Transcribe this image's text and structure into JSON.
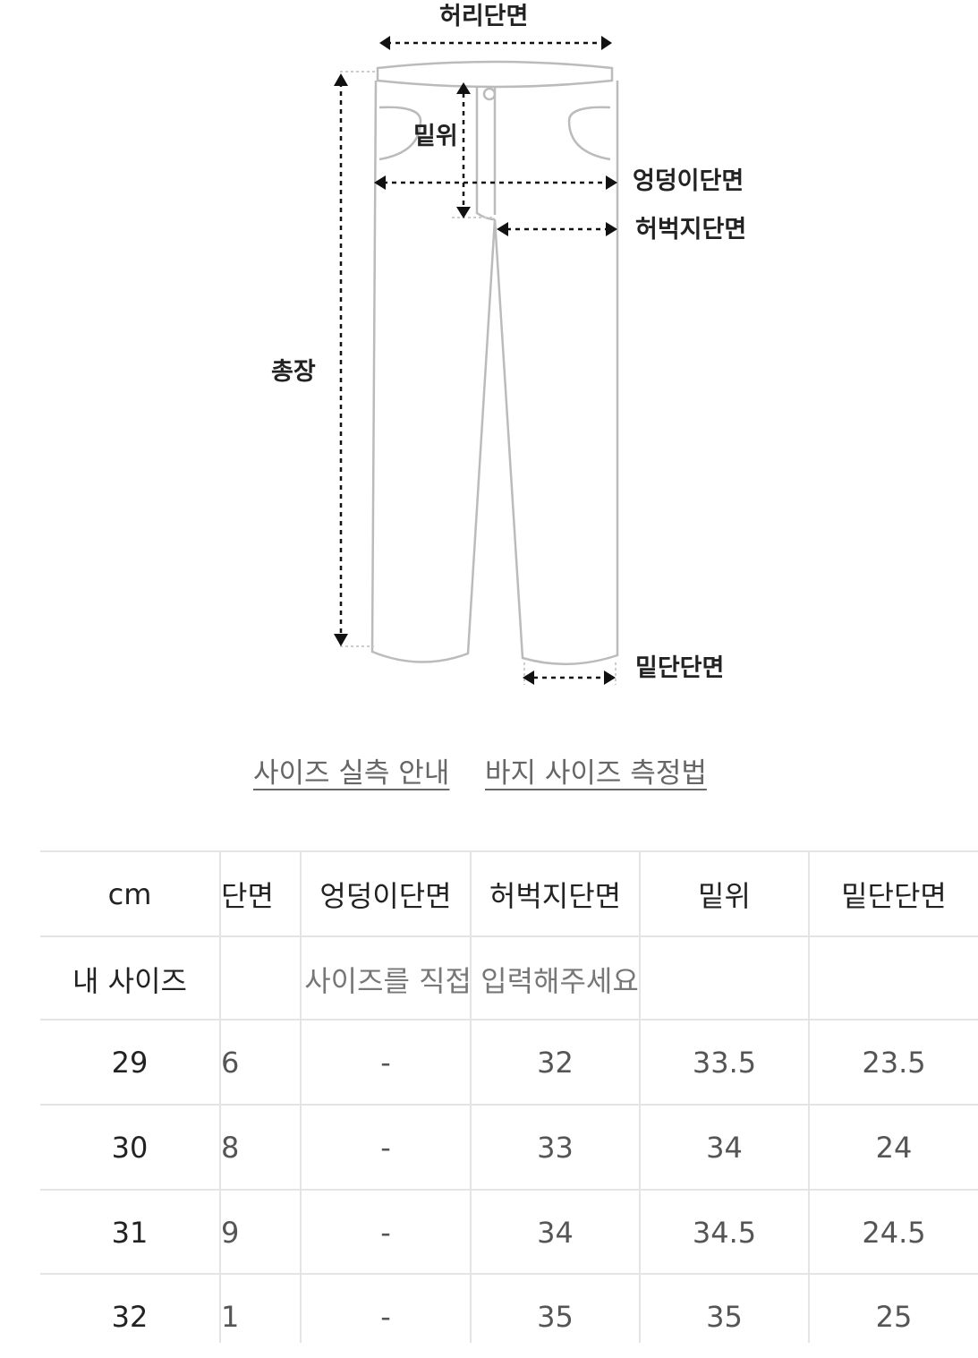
{
  "diagram": {
    "labels": {
      "waist": "허리단면",
      "rise": "밑위",
      "hip": "엉덩이단면",
      "thigh": "허벅지단면",
      "length": "총장",
      "hem": "밑단단면"
    }
  },
  "links": [
    "사이즈 실측 안내",
    "바지 사이즈 측정법"
  ],
  "table": {
    "header": [
      "cm",
      "단면",
      "엉덩이단면",
      "허벅지단면",
      "밑위",
      "밑단단면"
    ],
    "my_size": {
      "label": "내 사이즈",
      "placeholder": "사이즈를 직접 입력해주세요"
    },
    "rows": [
      [
        29,
        6,
        "-",
        32,
        33.5,
        23.5
      ],
      [
        30,
        8,
        "-",
        33,
        34,
        24
      ],
      [
        31,
        9,
        "-",
        34,
        34.5,
        24.5
      ],
      [
        32,
        1,
        "-",
        35,
        35,
        25
      ]
    ]
  }
}
